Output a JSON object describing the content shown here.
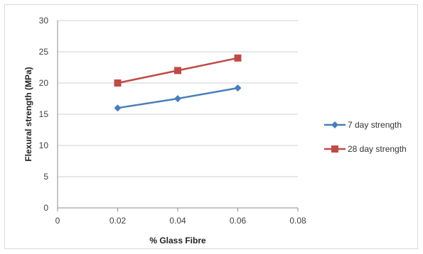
{
  "chart_data": {
    "type": "line",
    "title": "",
    "xlabel": "% Glass Fibre",
    "ylabel": "Flexural strength  (MPa)",
    "xlim": [
      0,
      0.08
    ],
    "ylim": [
      0,
      30
    ],
    "x_ticks": [
      "0",
      "0.02",
      "0.04",
      "0.06",
      "0.08"
    ],
    "y_ticks": [
      "0",
      "5",
      "10",
      "15",
      "20",
      "25",
      "30"
    ],
    "x": [
      0.02,
      0.04,
      0.06
    ],
    "grid": "horizontal",
    "legend_position": "right",
    "series": [
      {
        "name": "7 day strength",
        "values": [
          16,
          17.5,
          19.2
        ],
        "color": "#4a7ebb",
        "marker": "diamond"
      },
      {
        "name": "28 day strength",
        "values": [
          20,
          22,
          24
        ],
        "color": "#be4b48",
        "marker": "square"
      }
    ]
  }
}
